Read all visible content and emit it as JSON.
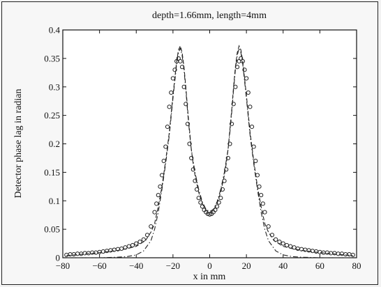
{
  "chart_data": {
    "type": "line",
    "title": "depth=1.66mm, length=4mm",
    "xlabel": "x in mm",
    "ylabel": "Detector phase lag in radian",
    "xlim": [
      -80,
      80
    ],
    "ylim": [
      0,
      0.4
    ],
    "xticks": [
      -80,
      -60,
      -40,
      -20,
      0,
      20,
      40,
      60,
      80
    ],
    "yticks": [
      0,
      0.05,
      0.1,
      0.15,
      0.2,
      0.25,
      0.3,
      0.35,
      0.4
    ],
    "xtick_labels": [
      "−80",
      "−60",
      "−40",
      "−20",
      "0",
      "20",
      "40",
      "60",
      "80"
    ],
    "ytick_labels": [
      "0",
      "0.05",
      "0.1",
      "0.15",
      "0.2",
      "0.25",
      "0.3",
      "0.35",
      "0.4"
    ],
    "grid": false,
    "series": [
      {
        "style": "circles",
        "x": [
          -78,
          -76,
          -74,
          -72,
          -70,
          -68,
          -66,
          -64,
          -62,
          -60,
          -58,
          -56,
          -54,
          -52,
          -50,
          -48,
          -46,
          -44,
          -42,
          -40,
          -38,
          -36,
          -34,
          -32,
          -30,
          -29,
          -28,
          -27,
          -26,
          -25,
          -24,
          -23,
          -22,
          -21,
          -20,
          -19,
          -18,
          -17,
          -16,
          -15,
          -14,
          -13,
          -12,
          -11,
          -10,
          -9,
          -8,
          -7,
          -6,
          -5,
          -4,
          -3,
          -2,
          -1,
          0,
          1,
          2,
          3,
          4,
          5,
          6,
          7,
          8,
          9,
          10,
          11,
          12,
          13,
          14,
          15,
          16,
          17,
          18,
          19,
          20,
          21,
          22,
          23,
          24,
          25,
          26,
          27,
          28,
          29,
          30,
          32,
          34,
          36,
          38,
          40,
          42,
          44,
          46,
          48,
          50,
          52,
          54,
          56,
          58,
          60,
          62,
          64,
          66,
          68,
          70,
          72,
          74,
          76,
          78
        ],
        "y": [
          0.005,
          0.006,
          0.006,
          0.007,
          0.007,
          0.008,
          0.008,
          0.009,
          0.009,
          0.01,
          0.011,
          0.012,
          0.013,
          0.014,
          0.015,
          0.016,
          0.018,
          0.02,
          0.022,
          0.025,
          0.028,
          0.032,
          0.04,
          0.055,
          0.08,
          0.095,
          0.11,
          0.125,
          0.145,
          0.17,
          0.195,
          0.23,
          0.265,
          0.29,
          0.315,
          0.33,
          0.345,
          0.35,
          0.345,
          0.335,
          0.3,
          0.27,
          0.235,
          0.2,
          0.175,
          0.155,
          0.135,
          0.12,
          0.105,
          0.097,
          0.09,
          0.084,
          0.08,
          0.077,
          0.076,
          0.077,
          0.08,
          0.084,
          0.09,
          0.097,
          0.105,
          0.12,
          0.135,
          0.155,
          0.175,
          0.2,
          0.235,
          0.27,
          0.3,
          0.335,
          0.345,
          0.35,
          0.345,
          0.33,
          0.315,
          0.29,
          0.265,
          0.23,
          0.195,
          0.17,
          0.145,
          0.125,
          0.11,
          0.095,
          0.08,
          0.055,
          0.04,
          0.032,
          0.028,
          0.025,
          0.022,
          0.02,
          0.018,
          0.016,
          0.015,
          0.014,
          0.013,
          0.012,
          0.011,
          0.01,
          0.009,
          0.009,
          0.008,
          0.008,
          0.007,
          0.007,
          0.006,
          0.006,
          0.005
        ]
      },
      {
        "style": "dashed",
        "x": [
          -78,
          -70,
          -60,
          -50,
          -45,
          -40,
          -35,
          -32,
          -30,
          -28,
          -26,
          -24,
          -22,
          -20,
          -19,
          -18,
          -17,
          -16,
          -15,
          -14,
          -13,
          -12,
          -11,
          -10,
          -9,
          -8,
          -6,
          -4,
          -2,
          0,
          2,
          4,
          6,
          8,
          9,
          10,
          11,
          12,
          13,
          14,
          15,
          16,
          17,
          18,
          19,
          20,
          22,
          24,
          26,
          28,
          30,
          32,
          35,
          40,
          45,
          50,
          60,
          70,
          78
        ],
        "y": [
          0.004,
          0.006,
          0.009,
          0.013,
          0.016,
          0.02,
          0.03,
          0.045,
          0.06,
          0.09,
          0.125,
          0.17,
          0.22,
          0.285,
          0.315,
          0.345,
          0.365,
          0.372,
          0.36,
          0.335,
          0.3,
          0.26,
          0.225,
          0.19,
          0.165,
          0.145,
          0.115,
          0.095,
          0.083,
          0.079,
          0.083,
          0.095,
          0.115,
          0.145,
          0.165,
          0.19,
          0.225,
          0.26,
          0.3,
          0.335,
          0.36,
          0.372,
          0.365,
          0.345,
          0.315,
          0.285,
          0.22,
          0.17,
          0.125,
          0.09,
          0.06,
          0.045,
          0.03,
          0.02,
          0.016,
          0.013,
          0.009,
          0.006,
          0.004
        ]
      },
      {
        "style": "dashdot",
        "x": [
          -78,
          -70,
          -60,
          -50,
          -45,
          -40,
          -36,
          -32,
          -30,
          -28,
          -26,
          -24,
          -22,
          -20,
          -19,
          -18,
          -17,
          -16,
          -15,
          -14,
          -13,
          -12,
          -11,
          -10,
          -8,
          -6,
          -4,
          -2,
          0,
          2,
          4,
          6,
          8,
          10,
          11,
          12,
          13,
          14,
          15,
          16,
          17,
          18,
          19,
          20,
          22,
          24,
          26,
          28,
          30,
          32,
          36,
          40,
          45,
          50,
          60,
          70,
          78
        ],
        "y": [
          0.0,
          0.0,
          0.0,
          0.001,
          0.002,
          0.005,
          0.012,
          0.03,
          0.05,
          0.08,
          0.12,
          0.165,
          0.215,
          0.28,
          0.31,
          0.34,
          0.36,
          0.368,
          0.355,
          0.33,
          0.295,
          0.255,
          0.22,
          0.19,
          0.15,
          0.12,
          0.098,
          0.085,
          0.081,
          0.085,
          0.098,
          0.12,
          0.15,
          0.19,
          0.22,
          0.255,
          0.295,
          0.33,
          0.355,
          0.368,
          0.36,
          0.34,
          0.31,
          0.28,
          0.215,
          0.165,
          0.12,
          0.08,
          0.05,
          0.03,
          0.012,
          0.005,
          0.002,
          0.001,
          0.0,
          0.0,
          0.0
        ]
      }
    ]
  }
}
